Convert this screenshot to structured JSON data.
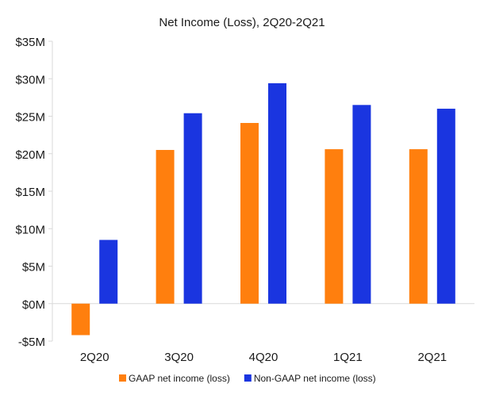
{
  "chart_data": {
    "type": "bar",
    "title": "Net Income (Loss), 2Q20-2Q21",
    "xlabel": "",
    "ylabel": "",
    "categories": [
      "2Q20",
      "3Q20",
      "4Q20",
      "1Q21",
      "2Q21"
    ],
    "series": [
      {
        "name": "GAAP net income (loss)",
        "color": "#FF7F0E",
        "values": [
          -4.2,
          20.5,
          24.1,
          20.6,
          20.6
        ]
      },
      {
        "name": "Non-GAAP net income (loss)",
        "color": "#1A35E0",
        "values": [
          8.5,
          25.4,
          29.4,
          26.5,
          26.0
        ]
      }
    ],
    "ylim": [
      -5,
      35
    ],
    "yticks": [
      -5,
      0,
      5,
      10,
      15,
      20,
      25,
      30,
      35
    ],
    "ytick_labels": [
      "-$5M",
      "$0M",
      "$5M",
      "$10M",
      "$15M",
      "$20M",
      "$25M",
      "$30M",
      "$35M"
    ],
    "grid": false,
    "legend_position": "bottom-center"
  }
}
